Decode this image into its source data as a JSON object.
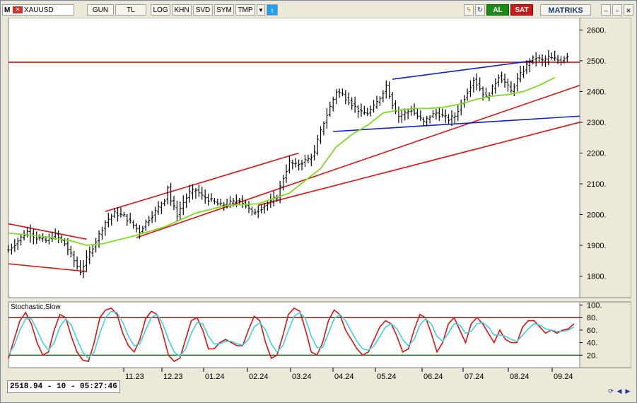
{
  "toolbar": {
    "symbol": "XAUUSD",
    "buttons": [
      "GUN",
      "TL",
      "LOG",
      "KHN",
      "SVD",
      "SYM",
      "TMP"
    ],
    "buy_label": "AL",
    "sell_label": "SAT",
    "brand": "MATRIKS"
  },
  "status": {
    "readout": "2518.94 - 10 - 05:27:46"
  },
  "colors": {
    "background": "#ffffff",
    "candle": "#000000",
    "moving_average": "#7ddc1f",
    "trend_red": "#e01010",
    "trend_blue": "#1020c8",
    "stoch_k": "#e01010",
    "stoch_d": "#3fd0e0",
    "level_80": "#8b0000",
    "level_20": "#007000"
  },
  "chart_data": [
    {
      "type": "candlestick",
      "symbol": "XAUUSD",
      "x_tick_labels": [
        "11.23",
        "12.23",
        "01.24",
        "02.24",
        "03.24",
        "04.24",
        "05.24",
        "06.24",
        "07.24",
        "08.24",
        "09.24"
      ],
      "y_ticks": [
        1800,
        1900,
        2000,
        2100,
        2200,
        2300,
        2400,
        2500,
        2600
      ],
      "y_tick_labels": [
        "1800.",
        "1900.",
        "2000.",
        "2100.",
        "2200.",
        "2300.",
        "2400.",
        "2500.",
        "2600."
      ],
      "ylim": [
        1730,
        2640
      ],
      "price_path": [
        [
          0,
          1885
        ],
        [
          3,
          1915
        ],
        [
          6,
          1945
        ],
        [
          9,
          1925
        ],
        [
          12,
          1915
        ],
        [
          15,
          1935
        ],
        [
          18,
          1905
        ],
        [
          21,
          1850
        ],
        [
          23,
          1815
        ],
        [
          25,
          1855
        ],
        [
          27,
          1895
        ],
        [
          29,
          1935
        ],
        [
          31,
          1975
        ],
        [
          34,
          2005
        ],
        [
          37,
          1995
        ],
        [
          40,
          1965
        ],
        [
          42,
          1945
        ],
        [
          44,
          1975
        ],
        [
          47,
          2010
        ],
        [
          50,
          2050
        ],
        [
          51,
          2090
        ],
        [
          52,
          2045
        ],
        [
          54,
          2000
        ],
        [
          56,
          2040
        ],
        [
          58,
          2070
        ],
        [
          60,
          2080
        ],
        [
          62,
          2060
        ],
        [
          64,
          2050
        ],
        [
          66,
          2040
        ],
        [
          68,
          2030
        ],
        [
          70,
          2035
        ],
        [
          72,
          2040
        ],
        [
          74,
          2050
        ],
        [
          76,
          2030
        ],
        [
          78,
          2005
        ],
        [
          80,
          2015
        ],
        [
          82,
          2030
        ],
        [
          84,
          2040
        ],
        [
          86,
          2060
        ],
        [
          88,
          2120
        ],
        [
          90,
          2170
        ],
        [
          92,
          2160
        ],
        [
          94,
          2170
        ],
        [
          96,
          2180
        ],
        [
          98,
          2200
        ],
        [
          99,
          2240
        ],
        [
          101,
          2300
        ],
        [
          103,
          2350
        ],
        [
          105,
          2400
        ],
        [
          107,
          2390
        ],
        [
          109,
          2370
        ],
        [
          111,
          2350
        ],
        [
          113,
          2330
        ],
        [
          115,
          2330
        ],
        [
          117,
          2350
        ],
        [
          119,
          2380
        ],
        [
          121,
          2420
        ],
        [
          123,
          2360
        ],
        [
          125,
          2320
        ],
        [
          127,
          2330
        ],
        [
          129,
          2340
        ],
        [
          131,
          2320
        ],
        [
          133,
          2300
        ],
        [
          135,
          2320
        ],
        [
          137,
          2330
        ],
        [
          139,
          2320
        ],
        [
          141,
          2310
        ],
        [
          143,
          2320
        ],
        [
          145,
          2360
        ],
        [
          147,
          2400
        ],
        [
          149,
          2440
        ],
        [
          151,
          2410
        ],
        [
          153,
          2380
        ],
        [
          155,
          2410
        ],
        [
          157,
          2450
        ],
        [
          159,
          2430
        ],
        [
          161,
          2400
        ],
        [
          163,
          2440
        ],
        [
          165,
          2470
        ],
        [
          167,
          2500
        ],
        [
          169,
          2510
        ],
        [
          171,
          2500
        ],
        [
          173,
          2510
        ],
        [
          175,
          2505
        ],
        [
          177,
          2500
        ],
        [
          179,
          2519
        ]
      ],
      "moving_average": [
        [
          0,
          1940
        ],
        [
          10,
          1930
        ],
        [
          20,
          1915
        ],
        [
          25,
          1900
        ],
        [
          30,
          1905
        ],
        [
          40,
          1930
        ],
        [
          50,
          1960
        ],
        [
          60,
          2005
        ],
        [
          70,
          2030
        ],
        [
          80,
          2035
        ],
        [
          90,
          2070
        ],
        [
          100,
          2150
        ],
        [
          105,
          2220
        ],
        [
          110,
          2260
        ],
        [
          115,
          2290
        ],
        [
          120,
          2330
        ],
        [
          125,
          2340
        ],
        [
          130,
          2345
        ],
        [
          135,
          2345
        ],
        [
          140,
          2350
        ],
        [
          145,
          2360
        ],
        [
          150,
          2375
        ],
        [
          155,
          2385
        ],
        [
          160,
          2390
        ],
        [
          165,
          2400
        ],
        [
          170,
          2420
        ],
        [
          175,
          2445
        ]
      ],
      "horizontal_line": 2495,
      "trendlines_red": [
        [
          [
            0,
            1970
          ],
          [
            25,
            1920
          ]
        ],
        [
          [
            0,
            1840
          ],
          [
            25,
            1815
          ]
        ],
        [
          [
            31,
            2010
          ],
          [
            93,
            2200
          ]
        ],
        [
          [
            41,
            1925
          ],
          [
            183,
            2420
          ]
        ],
        [
          [
            80,
            2030
          ],
          [
            183,
            2300
          ]
        ]
      ],
      "trendlines_blue": [
        [
          [
            104,
            2270
          ],
          [
            183,
            2320
          ]
        ],
        [
          [
            123,
            2440
          ],
          [
            168,
            2500
          ]
        ]
      ]
    },
    {
      "type": "line",
      "title": "Stochastic,Slow",
      "y_ticks": [
        20,
        40,
        60,
        80,
        100
      ],
      "y_tick_labels": [
        "20.",
        "40.",
        "60.",
        "80.",
        "100."
      ],
      "ylim": [
        0,
        105
      ],
      "levels": [
        20,
        80
      ],
      "series": [
        {
          "values": [
            15,
            45,
            75,
            88,
            70,
            40,
            20,
            25,
            60,
            85,
            80,
            50,
            25,
            12,
            10,
            40,
            80,
            92,
            95,
            85,
            55,
            35,
            25,
            45,
            78,
            90,
            85,
            55,
            20,
            10,
            15,
            45,
            75,
            80,
            60,
            30,
            30,
            40,
            45,
            40,
            35,
            35,
            60,
            82,
            75,
            40,
            15,
            20,
            50,
            85,
            95,
            90,
            60,
            25,
            20,
            40,
            75,
            92,
            85,
            60,
            45,
            30,
            20,
            25,
            45,
            65,
            75,
            70,
            50,
            25,
            30,
            60,
            85,
            80,
            55,
            25,
            40,
            70,
            80,
            60,
            40,
            70,
            80,
            70,
            55,
            40,
            60,
            45,
            40,
            40,
            65,
            75,
            75,
            65,
            55,
            60,
            55,
            60,
            62,
            70
          ]
        },
        {
          "values": [
            20,
            35,
            60,
            78,
            78,
            60,
            40,
            28,
            40,
            65,
            78,
            68,
            45,
            25,
            15,
            25,
            55,
            80,
            90,
            88,
            72,
            50,
            35,
            38,
            60,
            80,
            85,
            70,
            45,
            25,
            18,
            30,
            55,
            72,
            70,
            50,
            38,
            38,
            42,
            42,
            38,
            36,
            45,
            65,
            72,
            60,
            38,
            25,
            35,
            60,
            82,
            88,
            78,
            50,
            32,
            32,
            55,
            78,
            85,
            75,
            58,
            42,
            30,
            28,
            35,
            50,
            65,
            70,
            62,
            45,
            35,
            45,
            68,
            78,
            70,
            50,
            42,
            55,
            70,
            68,
            55,
            58,
            70,
            72,
            65,
            52,
            52,
            50,
            45,
            42,
            52,
            62,
            70,
            68,
            62,
            60,
            58,
            58,
            60,
            65
          ]
        }
      ]
    }
  ]
}
